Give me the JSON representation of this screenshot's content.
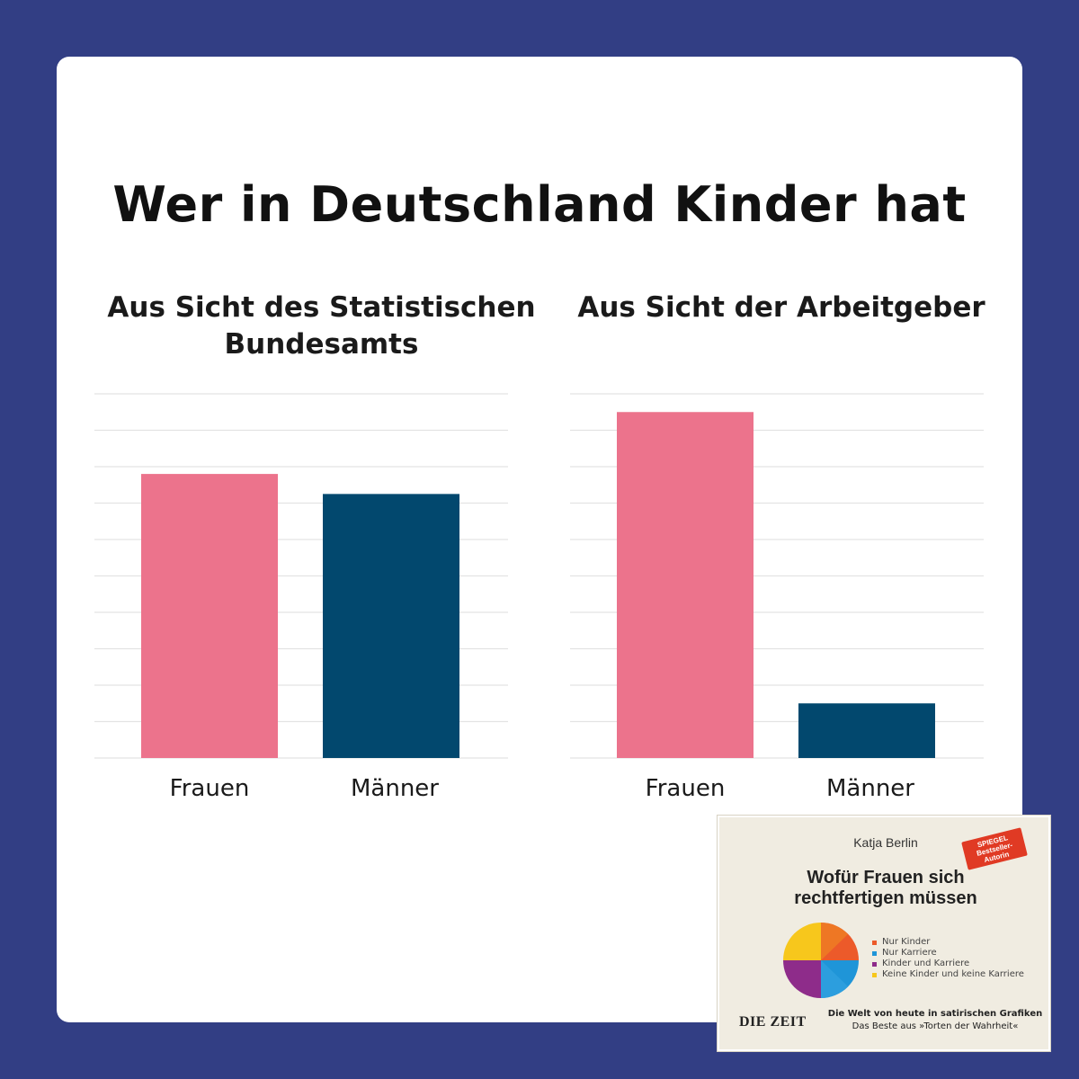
{
  "title": "Wer in Deutschland Kinder hat",
  "colors": {
    "background": "#323e84",
    "frauen": "#ec738c",
    "maenner": "#02486e"
  },
  "chart_data": [
    {
      "type": "bar",
      "title": "Aus Sicht des Statistischen Bundesamts",
      "categories": [
        "Frauen",
        "Männer"
      ],
      "values": [
        7.8,
        7.25
      ],
      "ylim": [
        0,
        10
      ],
      "grid": true
    },
    {
      "type": "bar",
      "title": "Aus Sicht der Arbeitgeber",
      "categories": [
        "Frauen",
        "Männer"
      ],
      "values": [
        9.5,
        1.5
      ],
      "ylim": [
        0,
        10
      ],
      "grid": true
    }
  ],
  "book": {
    "author": "Katja Berlin",
    "badge_line1": "SPIEGEL",
    "badge_line2": "Bestseller-",
    "badge_line3": "Autorin",
    "title_line1": "Wofür Frauen sich",
    "title_line2": "rechtfertigen müssen",
    "legend": [
      {
        "label": "Nur Kinder",
        "color": "#ec5a2a"
      },
      {
        "label": "Nur Karriere",
        "color": "#1f95d8"
      },
      {
        "label": "Kinder und Karriere",
        "color": "#8e2c8a"
      },
      {
        "label": "Keine Kinder und keine Karriere",
        "color": "#f7c71c"
      }
    ],
    "brand": "DIE ZEIT",
    "tagline_bold": "Die Welt von heute in satirischen Grafiken",
    "tagline": "Das Beste aus »Torten der Wahrheit«"
  }
}
